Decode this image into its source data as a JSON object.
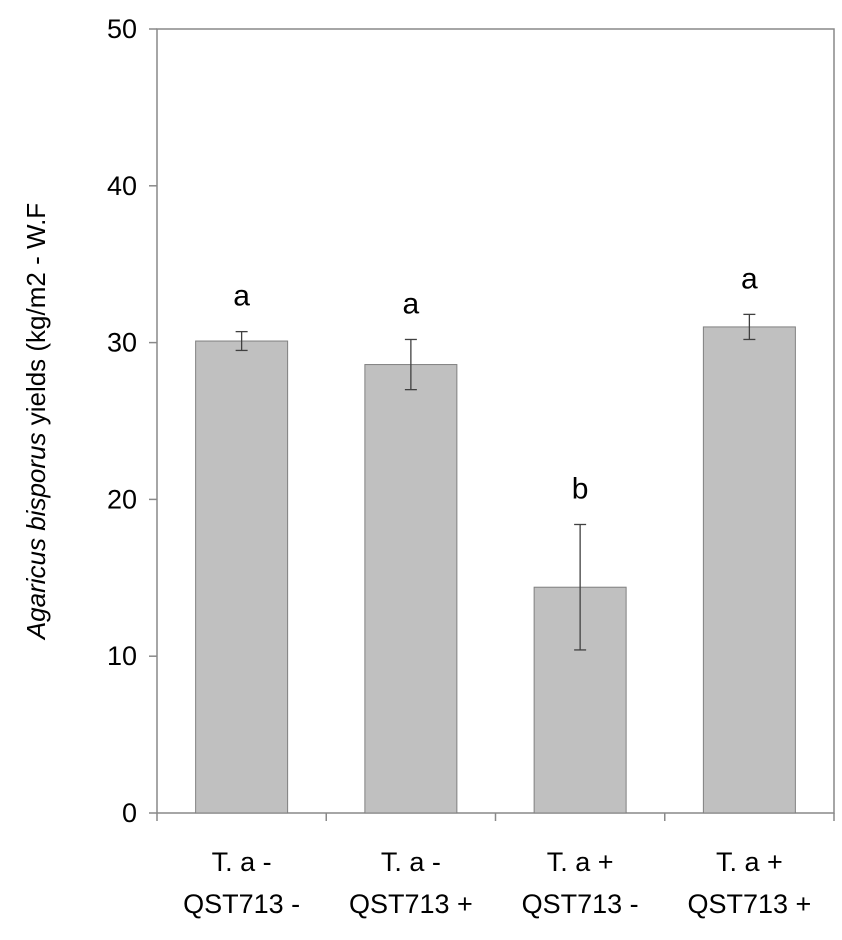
{
  "chart_data": {
    "type": "bar",
    "categories": [
      [
        "T. a -",
        "QST713 -"
      ],
      [
        "T. a -",
        "QST713 +"
      ],
      [
        "T. a +",
        "QST713 -"
      ],
      [
        "T. a +",
        "QST713 +"
      ]
    ],
    "values": [
      30.1,
      28.6,
      14.4,
      31.0
    ],
    "error": [
      0.6,
      1.6,
      4.0,
      0.8
    ],
    "significance": [
      "a",
      "a",
      "b",
      "a"
    ],
    "ylabel": {
      "italic": "Agaricus bisporus",
      "rest": " yields (kg/m2 - W.F"
    },
    "ylim": [
      0,
      50
    ],
    "yticks": [
      0,
      10,
      20,
      30,
      40,
      50
    ],
    "grid": false,
    "colors": {
      "bar_fill": "#c0c0c0",
      "bar_stroke": "#808080",
      "axis": "#898989",
      "error_bar": "#404040"
    }
  }
}
